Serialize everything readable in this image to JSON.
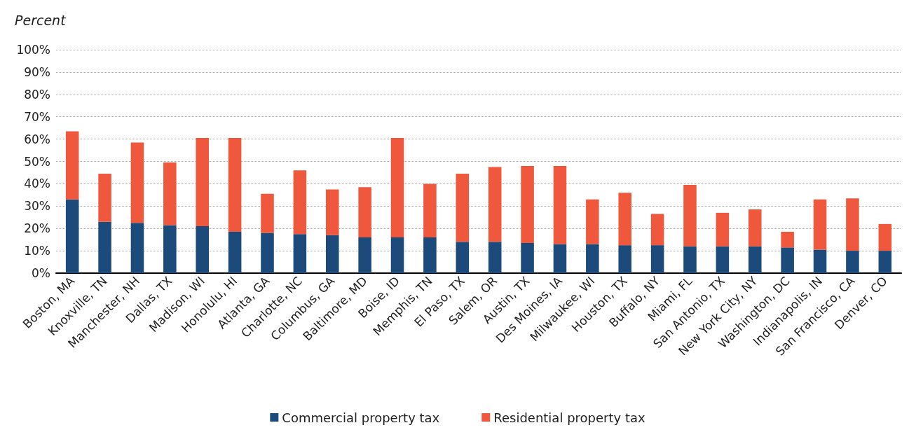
{
  "chart_data": {
    "type": "bar",
    "stacked": true,
    "ylabel": "Percent",
    "categories": [
      "Boston, MA",
      "Knoxville, TN",
      "Manchester, NH",
      "Dallas, TX",
      "Madison, WI",
      "Honolulu, HI",
      "Atlanta, GA",
      "Charlotte, NC",
      "Columbus, GA",
      "Baltimore, MD",
      "Boise, ID",
      "Memphis, TN",
      "El Paso, TX",
      "Salem, OR",
      "Austin, TX",
      "Des Moines, IA",
      "Milwaukee, WI",
      "Houston, TX",
      "Buffalo, NY",
      "Miami, FL",
      "San Antonio, TX",
      "New York City, NY",
      "Washington, DC",
      "Indianapolis, IN",
      "San Francisco, CA",
      "Denver, CO"
    ],
    "series": [
      {
        "name": "Commercial property tax",
        "color": "#1b4a7b",
        "values": [
          33,
          23,
          22.5,
          21.5,
          21,
          18.5,
          18,
          17.5,
          17,
          16,
          16,
          16,
          14,
          14,
          13.5,
          13,
          13,
          12.5,
          12.5,
          12,
          12,
          12,
          11.5,
          10.5,
          10,
          10
        ]
      },
      {
        "name": "Residential property tax",
        "color": "#f0583e",
        "values": [
          30.5,
          21.5,
          36,
          28,
          39.5,
          42,
          17.5,
          28.5,
          20.5,
          22.5,
          44.5,
          24,
          30.5,
          33.5,
          34.5,
          35,
          20,
          23.5,
          14,
          27.5,
          15,
          16.5,
          7,
          22.5,
          23.5,
          12
        ]
      }
    ],
    "ylim": [
      0,
      100
    ],
    "yticks": [
      {
        "value": 0,
        "label": "0%"
      },
      {
        "value": 10,
        "label": "10%"
      },
      {
        "value": 20,
        "label": "20%"
      },
      {
        "value": 30,
        "label": "30%"
      },
      {
        "value": 40,
        "label": "40%"
      },
      {
        "value": 50,
        "label": "50%"
      },
      {
        "value": 60,
        "label": "60%"
      },
      {
        "value": 70,
        "label": "70%"
      },
      {
        "value": 80,
        "label": "80%"
      },
      {
        "value": 90,
        "label": "90%"
      },
      {
        "value": 100,
        "label": "100%"
      }
    ],
    "grid": "y",
    "legend": "bottom"
  }
}
